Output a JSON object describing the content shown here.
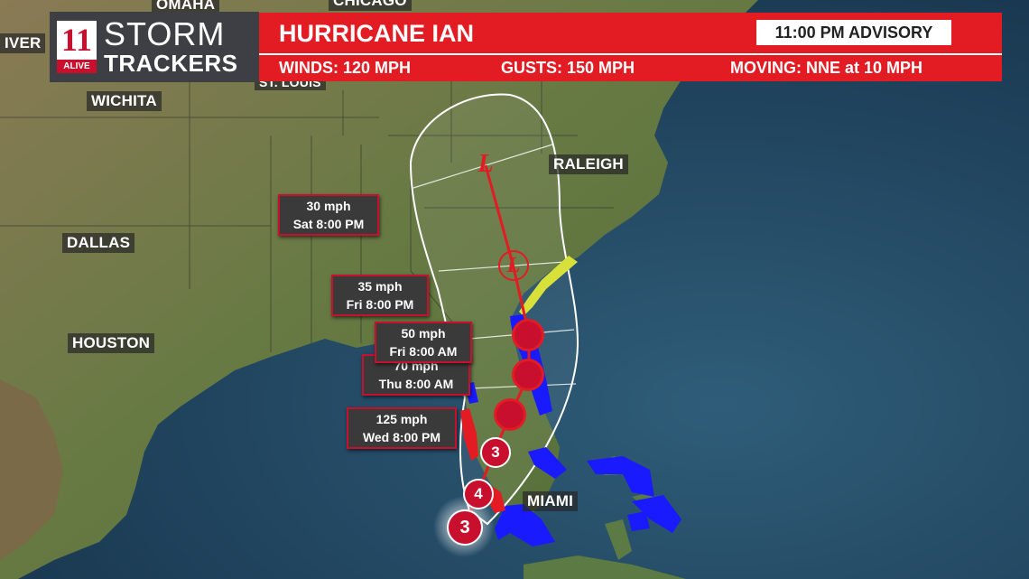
{
  "header": {
    "logo_top": "STORM",
    "logo_bottom": "TRACKERS",
    "logo_mark": "11",
    "logo_station": "ALIVE",
    "storm_name": "HURRICANE IAN",
    "advisory": "11:00 PM  ADVISORY",
    "winds": "WINDS: 120 MPH",
    "gusts": "GUSTS:  150 MPH",
    "moving": "MOVING: NNE at 10 MPH"
  },
  "cities": {
    "omaha": "OMAHA",
    "chicago": "CHICAGO",
    "denver": "IVER",
    "wichita": "WICHITA",
    "st_louis": "ST. LOUIS",
    "dallas": "DALLAS",
    "houston": "HOUSTON",
    "raleigh": "RALEIGH",
    "miami": "MIAMI"
  },
  "forecast_points": [
    {
      "wind": "30 mph",
      "time": "Sat 8:00 PM",
      "marker": "L"
    },
    {
      "wind": "35 mph",
      "time": "Fri 8:00 PM",
      "marker": "L"
    },
    {
      "wind": "50 mph",
      "time": "Fri 8:00 AM",
      "marker": "tropical storm"
    },
    {
      "wind": "70 mph",
      "time": "Thu 8:00 AM",
      "marker": "tropical storm"
    },
    {
      "wind": "125 mph",
      "time": "Wed 8:00 PM",
      "marker": "3"
    }
  ],
  "track_markers": [
    "L",
    "L",
    "",
    "",
    "",
    "3",
    "4",
    "3"
  ],
  "colors": {
    "banner_red": "#e31b23",
    "track_red": "#c8102e",
    "hurricane_warning": "#1a1aff",
    "storm_watch": "#d8e03a",
    "cone_outline": "#ffffff"
  }
}
